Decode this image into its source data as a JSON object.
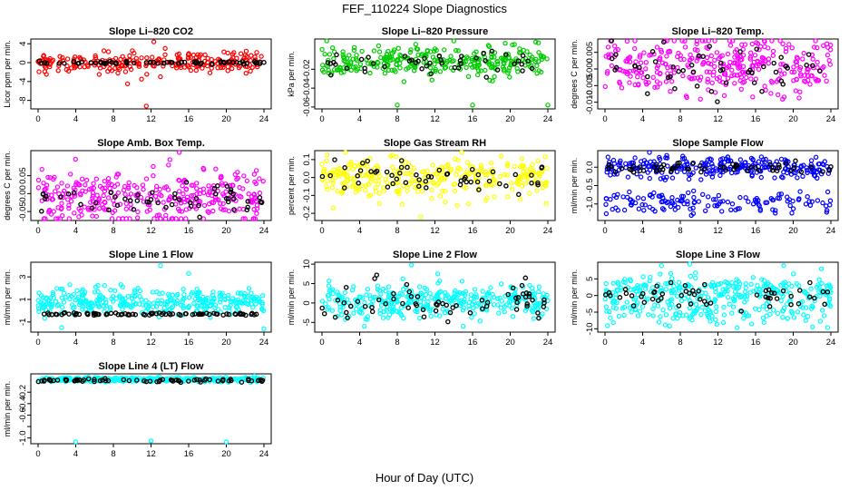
{
  "figure": {
    "title": "FEF_110224  Slope Diagnostics",
    "xlabel": "Hour of Day (UTC)"
  },
  "chart_data": [
    {
      "type": "scatter",
      "title": "Slope Li–820 CO2",
      "ylabel": "Licor ppm per min.",
      "xlim": [
        0,
        24
      ],
      "xticks": [
        "0",
        "4",
        "8",
        "12",
        "16",
        "20",
        "24"
      ],
      "ylim": [
        -9.8,
        5
      ],
      "yticks": [
        -8,
        -4,
        0,
        4
      ],
      "ytick_labels": [
        "-8",
        "-4",
        "0",
        "4"
      ],
      "colors": {
        "cloud": "#ff0000",
        "ref": "#000000"
      },
      "cloud": {
        "center": 0,
        "spread": 0.9,
        "n": 240,
        "outliers": [
          [
            11.5,
            -9.2
          ],
          [
            12.3,
            4.4
          ],
          [
            9.5,
            -4.5
          ],
          [
            11,
            -3.5
          ],
          [
            13,
            -3
          ],
          [
            6.5,
            -2.5
          ],
          [
            13.5,
            3
          ],
          [
            7,
            2.5
          ]
        ]
      },
      "ref": {
        "center": 0,
        "spread": 0.15,
        "n": 70
      }
    },
    {
      "type": "scatter",
      "title": "Slope Li–820 Pressure",
      "ylabel": "kPa per min.",
      "xlim": [
        0,
        24
      ],
      "xticks": [
        "0",
        "4",
        "8",
        "12",
        "16",
        "20",
        "24"
      ],
      "ylim": [
        -0.062,
        0.012
      ],
      "yticks": [
        -0.06,
        -0.04,
        -0.02
      ],
      "ytick_labels": [
        "-0.06",
        "-0.04",
        "-0.02"
      ],
      "colors": {
        "cloud": "#00cc00",
        "ref": "#000000"
      },
      "cloud": {
        "center": -0.012,
        "spread": 0.008,
        "n": 300,
        "outliers": [
          [
            8,
            -0.058
          ],
          [
            16,
            -0.058
          ],
          [
            24,
            -0.058
          ],
          [
            0.5,
            0.01
          ],
          [
            14,
            0.01
          ],
          [
            23,
            0.008
          ]
        ]
      },
      "ref": {
        "center": -0.012,
        "spread": 0.006,
        "n": 45
      }
    },
    {
      "type": "scatter",
      "title": "Slope Li–820 Temp.",
      "ylabel": "degrees C per min.",
      "xlim": [
        0,
        24
      ],
      "xticks": [
        "0",
        "4",
        "8",
        "12",
        "16",
        "20",
        "24"
      ],
      "ylim": [
        -0.012,
        0.009
      ],
      "yticks": [
        -0.01,
        -0.005,
        0,
        0.005
      ],
      "ytick_labels": [
        "-0.010",
        "-0.005",
        "0.000",
        "0.005"
      ],
      "colors": {
        "cloud": "#ff00ff",
        "ref": "#000000"
      },
      "cloud": {
        "center": 0.001,
        "spread": 0.0045,
        "n": 340,
        "outliers": []
      },
      "ref": {
        "center": 0,
        "spread": 0.004,
        "n": 50
      }
    },
    {
      "type": "scatter",
      "title": "Slope Amb. Box Temp.",
      "ylabel": "degrees C per min.",
      "xlim": [
        0,
        24
      ],
      "xticks": [
        "0",
        "4",
        "8",
        "12",
        "16",
        "20",
        "24"
      ],
      "ylim": [
        -0.075,
        0.12
      ],
      "yticks": [
        -0.05,
        0,
        0.05
      ],
      "ytick_labels": [
        "-0.05",
        "0.00",
        "0.05"
      ],
      "colors": {
        "cloud": "#ff00ff",
        "ref": "#000000"
      },
      "cloud": {
        "center": -0.01,
        "spread": 0.038,
        "n": 340,
        "outliers": [
          [
            15,
            0.115
          ],
          [
            14,
            0.095
          ]
        ]
      },
      "ref": {
        "center": -0.01,
        "spread": 0.025,
        "n": 55
      }
    },
    {
      "type": "scatter",
      "title": "Slope Gas Stream RH",
      "ylabel": "percent per min.",
      "xlim": [
        0,
        24
      ],
      "xticks": [
        "0",
        "4",
        "8",
        "12",
        "16",
        "20",
        "24"
      ],
      "ylim": [
        -0.24,
        0.15
      ],
      "yticks": [
        -0.2,
        -0.1,
        0,
        0.1
      ],
      "ytick_labels": [
        "-0.2",
        "-0.1",
        "0.0",
        "0.1"
      ],
      "colors": {
        "cloud": "#ffff00",
        "ref": "#000000"
      },
      "cloud": {
        "center": 0,
        "spread": 0.055,
        "n": 320,
        "outliers": [
          [
            10.5,
            -0.22
          ],
          [
            1.2,
            -0.17
          ],
          [
            8.5,
            -0.15
          ],
          [
            2.5,
            0.14
          ]
        ]
      },
      "ref": {
        "center": 0,
        "spread": 0.04,
        "n": 55
      }
    },
    {
      "type": "scatter",
      "title": "Slope Sample Flow",
      "ylabel": "ml/min per min.",
      "xlim": [
        0,
        24
      ],
      "xticks": [
        "0",
        "4",
        "8",
        "12",
        "16",
        "20",
        "24"
      ],
      "ylim": [
        -1.45,
        0.45
      ],
      "yticks": [
        -1,
        -0.5,
        0
      ],
      "ytick_labels": [
        "-1.0",
        "-0.5",
        "0.0"
      ],
      "colors": {
        "cloud": "#0000ff",
        "ref": "#000000"
      },
      "cloud": {
        "center": 0,
        "spread": 0.15,
        "n": 260,
        "band2": {
          "center": -0.95,
          "spread": 0.15,
          "n": 140
        },
        "outliers": []
      },
      "ref": {
        "center": 0,
        "spread": 0.07,
        "n": 60
      }
    },
    {
      "type": "scatter",
      "title": "Slope Line 1 Flow",
      "ylabel": "ml/min per min.",
      "xlim": [
        0,
        24
      ],
      "xticks": [
        "0",
        "4",
        "8",
        "12",
        "16",
        "20",
        "24"
      ],
      "ylim": [
        -1.9,
        4.3
      ],
      "yticks": [
        -1,
        1,
        3
      ],
      "ytick_labels": [
        "-1",
        "1",
        "3"
      ],
      "colors": {
        "cloud": "#00ffff",
        "ref": "#000000"
      },
      "cloud": {
        "center": 0.8,
        "spread": 0.6,
        "n": 330,
        "outliers": [
          [
            13,
            4
          ],
          [
            16,
            3.3
          ],
          [
            24,
            -1.6
          ],
          [
            2.5,
            -1.5
          ]
        ]
      },
      "ref": {
        "center": -0.3,
        "spread": 0.05,
        "n": 85
      }
    },
    {
      "type": "scatter",
      "title": "Slope Line 2 Flow",
      "ylabel": "ml/min per min.",
      "xlim": [
        0,
        24
      ],
      "xticks": [
        "0",
        "4",
        "8",
        "12",
        "16",
        "20",
        "24"
      ],
      "ylim": [
        -7.5,
        10.5
      ],
      "yticks": [
        -5,
        0,
        5,
        10
      ],
      "ytick_labels": [
        "-5",
        "0",
        "5",
        "10"
      ],
      "colors": {
        "cloud": "#00ffff",
        "ref": "#000000"
      },
      "cloud": {
        "center": 0.5,
        "spread": 2.1,
        "n": 340,
        "outliers": [
          [
            9.5,
            9.8
          ],
          [
            12.3,
            7.5
          ],
          [
            4.5,
            -6
          ],
          [
            15,
            -6
          ]
        ]
      },
      "ref": {
        "center": 0,
        "spread": 2.6,
        "n": 65
      }
    },
    {
      "type": "scatter",
      "title": "Slope Line 3 Flow",
      "ylabel": "ml/min per min.",
      "xlim": [
        0,
        24
      ],
      "xticks": [
        "0",
        "4",
        "8",
        "12",
        "16",
        "20",
        "24"
      ],
      "ylim": [
        -11,
        10
      ],
      "yticks": [
        -10,
        -5,
        0,
        5
      ],
      "ytick_labels": [
        "-10",
        "-5",
        "0",
        "5"
      ],
      "colors": {
        "cloud": "#00ffff",
        "ref": "#000000"
      },
      "cloud": {
        "center": 1.5,
        "spread": 2.2,
        "n": 250,
        "band2": {
          "center": -5,
          "spread": 2.2,
          "n": 130
        },
        "outliers": [
          [
            9,
            9.5
          ],
          [
            6,
            9
          ],
          [
            19,
            9
          ],
          [
            23,
            8
          ]
        ]
      },
      "ref": {
        "center": 0.5,
        "spread": 2.2,
        "n": 55
      }
    },
    {
      "type": "scatter",
      "title": "Slope Line 4 (LT) Flow",
      "ylabel": "ml/min per min.",
      "xlim": [
        0,
        24
      ],
      "xticks": [
        "0",
        "4",
        "8",
        "12",
        "16",
        "20",
        "24"
      ],
      "ylim": [
        -1.1,
        0.12
      ],
      "yticks": [
        -1,
        -0.8,
        -0.6,
        -0.4,
        -0.2
      ],
      "ytick_labels": [
        "-1.0",
        "",
        "-0.6",
        "-0.4",
        "-0.2"
      ],
      "colors": {
        "cloud": "#00ffff",
        "ref": "#000000"
      },
      "cloud": {
        "center": 0.02,
        "spread": 0.018,
        "n": 300,
        "outliers": [
          [
            4,
            -1.07
          ],
          [
            12,
            -1.05
          ],
          [
            20,
            -1.08
          ],
          [
            23,
            0.08
          ]
        ]
      },
      "ref": {
        "center": 0.005,
        "spread": 0.015,
        "n": 70
      }
    }
  ]
}
